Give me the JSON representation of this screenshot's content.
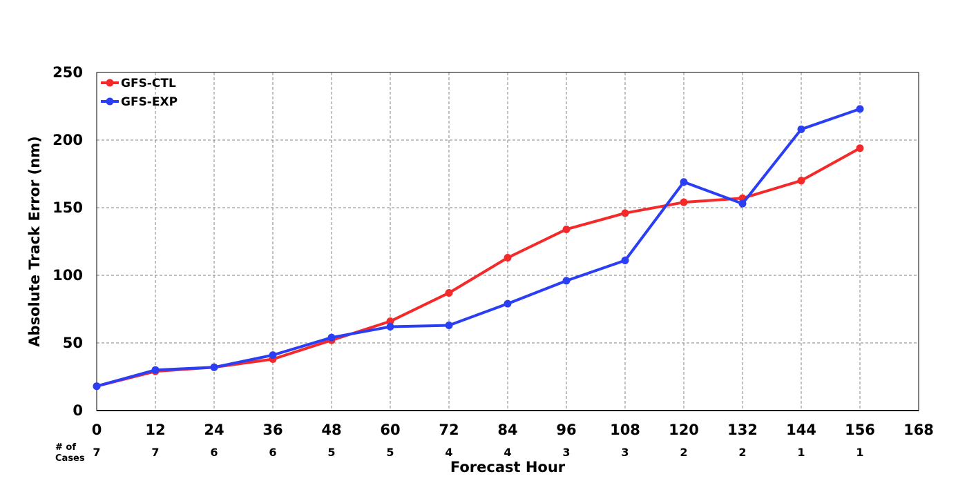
{
  "chart_data": {
    "type": "line",
    "xlabel": "Forecast Hour",
    "ylabel": "Absolute Track Error (nm)",
    "xlim": [
      0,
      168
    ],
    "ylim": [
      0,
      250
    ],
    "xticks": [
      0,
      12,
      24,
      36,
      48,
      60,
      72,
      84,
      96,
      108,
      120,
      132,
      144,
      156,
      168
    ],
    "yticks": [
      0,
      50,
      100,
      150,
      200,
      250
    ],
    "grid": true,
    "legend_position": "top-left",
    "x": [
      0,
      12,
      24,
      36,
      48,
      60,
      72,
      84,
      96,
      108,
      120,
      132,
      144,
      156
    ],
    "series": [
      {
        "name": "GFS-CTL",
        "color": "#f42a2a",
        "values": [
          18,
          29,
          32,
          38,
          52,
          66,
          87,
          113,
          134,
          146,
          154,
          157,
          170,
          194
        ]
      },
      {
        "name": "GFS-EXP",
        "color": "#2a3ff4",
        "values": [
          18,
          30,
          32,
          41,
          54,
          62,
          63,
          79,
          96,
          111,
          169,
          153,
          208,
          223
        ]
      }
    ],
    "cases": {
      "label_line1": "# of",
      "label_line2": "Cases",
      "values": [
        7,
        7,
        6,
        6,
        5,
        5,
        4,
        4,
        3,
        3,
        2,
        2,
        1,
        1
      ]
    }
  }
}
